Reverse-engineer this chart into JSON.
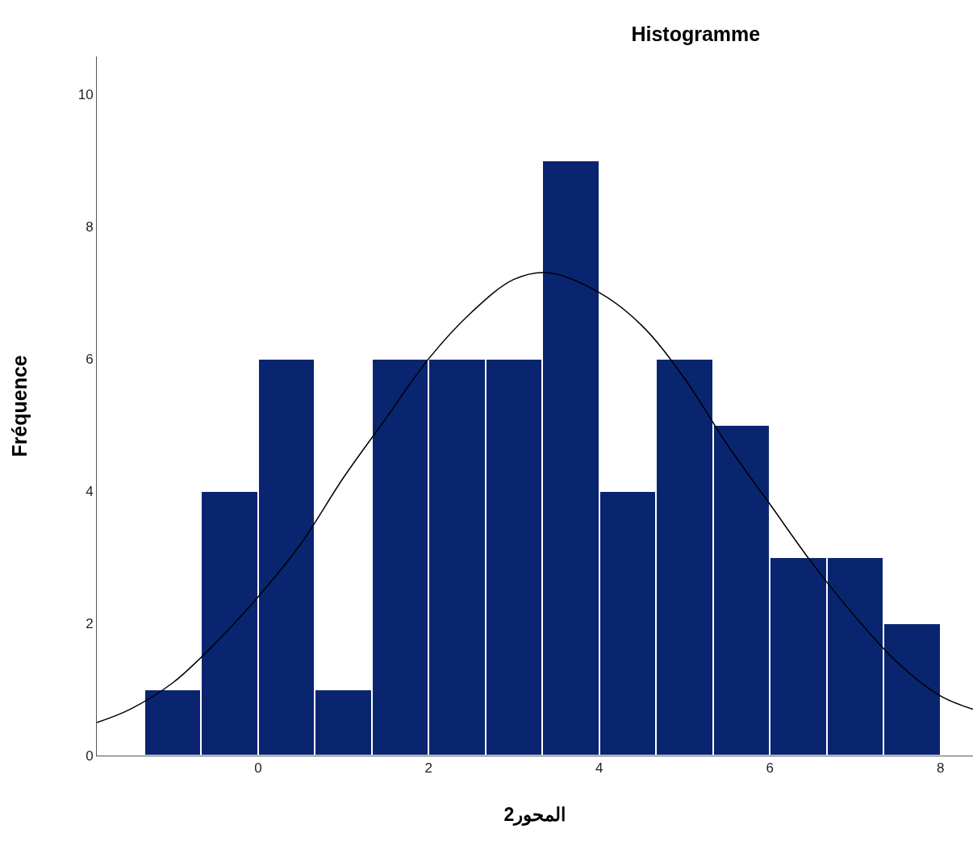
{
  "chart_data": {
    "type": "histogram",
    "title": "Histogramme",
    "xlabel": "المحور2",
    "ylabel": "Fréquence",
    "bins": [
      -1.333,
      -0.667,
      0,
      0.667,
      1.333,
      2,
      2.667,
      3.333,
      4,
      4.667,
      5.333,
      6,
      6.667,
      7.333,
      8
    ],
    "values": [
      1,
      4,
      6,
      1,
      6,
      6,
      6,
      9,
      4,
      6,
      5,
      3,
      3,
      2
    ],
    "color": "#0a2570",
    "series": [
      {
        "type": "line",
        "color": "#000000",
        "x": [
          -1.89,
          -1.5,
          -1,
          -0.5,
          0,
          0.5,
          1,
          1.5,
          2,
          2.5,
          3,
          3.4,
          4,
          4.5,
          5,
          5.5,
          6,
          6.5,
          7,
          7.5,
          8,
          8.38
        ],
        "values": [
          0.5,
          0.7,
          1.1,
          1.7,
          2.4,
          3.2,
          4.2,
          5.1,
          6.0,
          6.7,
          7.2,
          7.3,
          7.0,
          6.5,
          5.7,
          4.7,
          3.8,
          2.9,
          2.1,
          1.4,
          0.9,
          0.7
        ]
      }
    ],
    "xlim": [
      -1.89,
      8.38
    ],
    "xticks": [
      0,
      2,
      4,
      6,
      8
    ],
    "ylim": [
      0,
      10.57
    ],
    "yticks": [
      0,
      2,
      4,
      6,
      8,
      10
    ],
    "grid": false
  }
}
